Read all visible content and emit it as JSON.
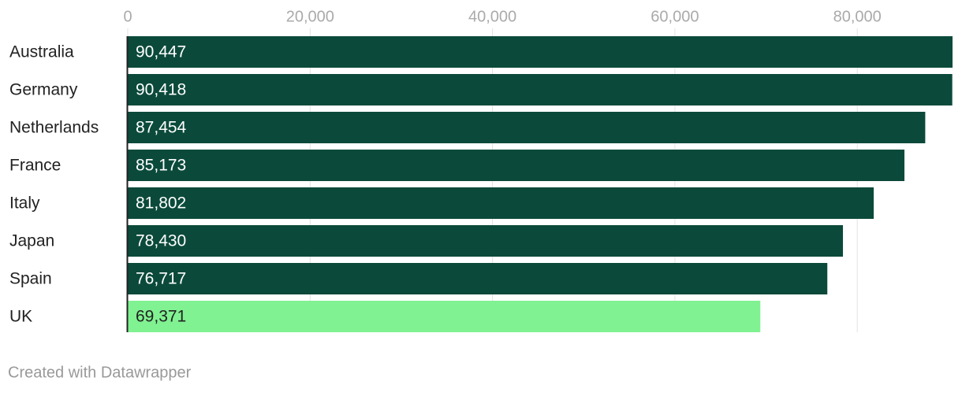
{
  "chart_data": {
    "type": "bar",
    "categories": [
      "Australia",
      "Germany",
      "Netherlands",
      "France",
      "Italy",
      "Japan",
      "Spain",
      "UK"
    ],
    "values": [
      90447,
      90418,
      87454,
      85173,
      81802,
      78430,
      76717,
      69371
    ],
    "value_labels": [
      "90,447",
      "90,418",
      "87,454",
      "85,173",
      "81,802",
      "78,430",
      "76,717",
      "69,371"
    ],
    "colors": [
      "#0b4a3a",
      "#0b4a3a",
      "#0b4a3a",
      "#0b4a3a",
      "#0b4a3a",
      "#0b4a3a",
      "#0b4a3a",
      "#80f291"
    ],
    "xlim": [
      0,
      90447
    ],
    "xticks": [
      0,
      {
        "value": 20000,
        "label": "20,000"
      },
      {
        "value": 40000,
        "label": "40,000"
      },
      {
        "value": 60000,
        "label": "60,000"
      },
      {
        "value": 80000,
        "label": "80,000"
      }
    ],
    "grid": true,
    "footer": "Created with Datawrapper"
  }
}
